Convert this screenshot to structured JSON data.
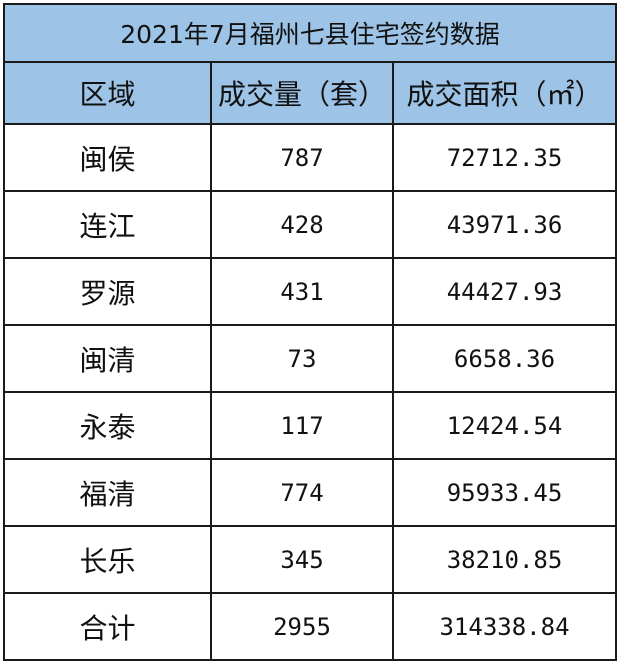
{
  "title": "2021年7月福州七县住宅签约数据",
  "headers": [
    "区域",
    "成交量（套）",
    "成交面积（㎡）"
  ],
  "rows": [
    [
      "闽侯",
      "787",
      "72712.35"
    ],
    [
      "连江",
      "428",
      "43971.36"
    ],
    [
      "罗源",
      "431",
      "44427.93"
    ],
    [
      "闽清",
      "73",
      "6658.36"
    ],
    [
      "永泰",
      "117",
      "12424.54"
    ],
    [
      "福清",
      "774",
      "95933.45"
    ],
    [
      "长乐",
      "345",
      "38210.85"
    ],
    [
      "合计",
      "2955",
      "314338.84"
    ]
  ],
  "colors": {
    "header_bg": "#9dc3e6",
    "border": "#1a1a1a"
  }
}
